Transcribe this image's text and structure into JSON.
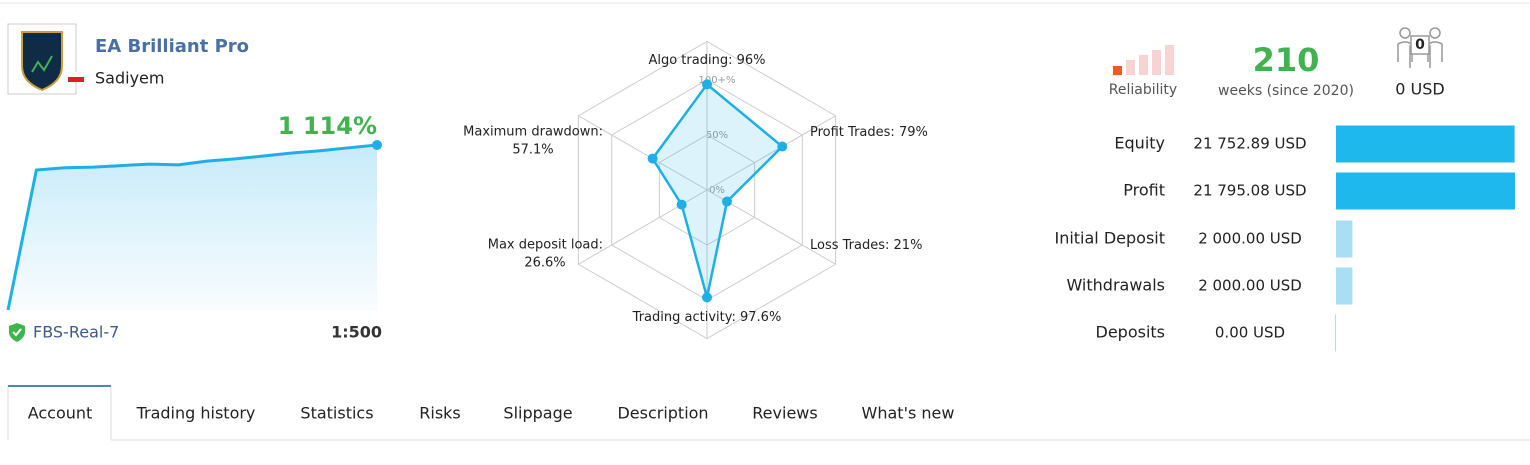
{
  "header": {
    "title": "EA Brilliant Pro",
    "author": "Sadiyem",
    "broker": "FBS-Real-7",
    "leverage": "1:500"
  },
  "stats": {
    "reliability_label": "Reliability",
    "weeks": 210,
    "weeks_label": "weeks (since 2020)",
    "subscribers": 0,
    "subscription_price": "0 USD"
  },
  "tabs": {
    "items": [
      "Account",
      "Trading history",
      "Statistics",
      "Risks",
      "Slippage",
      "Description",
      "Reviews",
      "What's new"
    ],
    "active": 0
  },
  "chart_data": [
    {
      "type": "area",
      "values": [
        0,
        945,
        960,
        965,
        975,
        985,
        980,
        1005,
        1020,
        1040,
        1060,
        1075,
        1095,
        1114
      ],
      "value_labels": [
        null,
        null,
        null,
        null,
        null,
        null,
        null,
        null,
        null,
        null,
        null,
        null,
        null,
        "1 114%"
      ],
      "ylim": [
        0,
        1114
      ],
      "color": "#1eaee8"
    },
    {
      "type": "radar",
      "categories": [
        "Algo trading:",
        "Profit Trades:",
        "Loss Trades:",
        "Trading activity:",
        "Max deposit load:",
        "Maximum drawdown:"
      ],
      "values": [
        96,
        79,
        21,
        97.6,
        26.6,
        57.1
      ],
      "value_labels": [
        "96%",
        "79%",
        "21%",
        "97.6%",
        "26.6%",
        "57.1%"
      ],
      "rlim": [
        0,
        100
      ],
      "rticks": [
        {
          "value": 0,
          "label": "0%"
        },
        {
          "value": 50,
          "label": "50%"
        },
        {
          "value": 100,
          "label": "100+%"
        }
      ],
      "color": "#1eaee8"
    },
    {
      "type": "hbar",
      "categories": [
        "Equity",
        "Profit",
        "Initial Deposit",
        "Withdrawals",
        "Deposits"
      ],
      "values": [
        21752.89,
        21795.08,
        2000,
        2000,
        0
      ],
      "value_labels": [
        "21 752.89 USD",
        "21 795.08 USD",
        "2 000.00 USD",
        "2 000.00 USD",
        "0.00 USD"
      ],
      "xlim": [
        0,
        21800
      ],
      "colors": [
        "#1eb8ec",
        "#1eb8ec",
        "#a9def3",
        "#a9def3",
        "#a9def3"
      ]
    }
  ]
}
